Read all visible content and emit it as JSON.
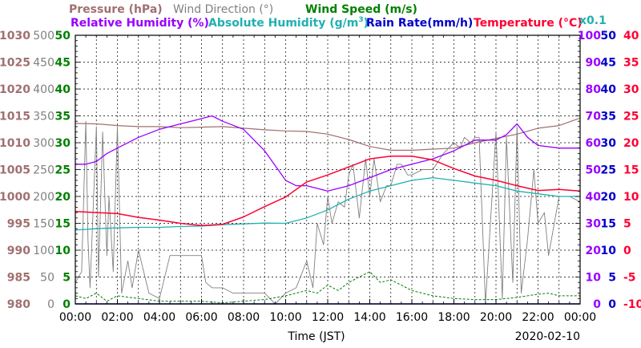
{
  "chart_data": {
    "type": "line",
    "date_label": "2020-02-10",
    "xlabel": "Time (JST)",
    "x_ticks": [
      "00:00",
      "02:00",
      "04:00",
      "06:00",
      "08:00",
      "10:00",
      "12:00",
      "14:00",
      "16:00",
      "18:00",
      "20:00",
      "22:00",
      "00:00"
    ],
    "x_range_hours": [
      0,
      24
    ],
    "grid": true,
    "colors": {
      "pressure": "#a07070",
      "wind_direction": "#808080",
      "wind_speed": "#008000",
      "relative_humidity": "#9900ff",
      "absolute_humidity": "#20b0b0",
      "rain_rate": "#0000cc",
      "temperature": "#ff0033"
    },
    "legend": {
      "pressure": "Pressure (hPa)",
      "wind_direction": "Wind Direction (°)",
      "wind_speed": "Wind Speed (m/s)",
      "relative_humidity": "Relative Humidity (%)",
      "absolute_humidity_main": "Absolute Humidity (g/m",
      "absolute_humidity_sup": "3",
      "absolute_humidity_end": ")",
      "rain_rate": "Rain Rate(mm/h)",
      "temperature": "Temperature (°C)",
      "abs_scale_note": "x0.1"
    },
    "axes": {
      "pressure": {
        "range": [
          980,
          1030
        ],
        "ticks": [
          "1030",
          "1025",
          "1020",
          "1015",
          "1010",
          "1005",
          "1000",
          "995",
          "990",
          "985",
          "980"
        ]
      },
      "wind_direction": {
        "range": [
          0,
          500
        ],
        "ticks": [
          "500",
          "450",
          "400",
          "350",
          "300",
          "250",
          "200",
          "150",
          "100",
          "50",
          "0"
        ]
      },
      "wind_speed": {
        "range": [
          0,
          50
        ],
        "ticks": [
          "50",
          "45",
          "40",
          "35",
          "30",
          "25",
          "20",
          "15",
          "10",
          "5",
          "0"
        ]
      },
      "humidity": {
        "range": [
          0,
          100
        ],
        "ticks": [
          "100",
          "90",
          "80",
          "70",
          "60",
          "50",
          "40",
          "30",
          "20",
          "10",
          "0"
        ]
      },
      "rain_rate": {
        "range": [
          0,
          50
        ],
        "ticks": [
          "50",
          "45",
          "40",
          "35",
          "30",
          "25",
          "20",
          "15",
          "10",
          "5",
          "0"
        ]
      },
      "temperature": {
        "range": [
          -10,
          40
        ],
        "ticks": [
          "40",
          "35",
          "30",
          "25",
          "20",
          "15",
          "10",
          "5",
          "0",
          "-5",
          "-10"
        ]
      }
    },
    "series": [
      {
        "name": "Pressure (hPa)",
        "key": "pressure",
        "x": [
          0,
          1,
          2,
          3,
          4,
          5,
          6,
          7,
          8,
          9,
          10,
          11,
          12,
          13,
          14,
          15,
          16,
          17,
          18,
          19,
          20,
          21,
          22,
          23,
          24
        ],
        "y": [
          1013.6,
          1013.5,
          1013.2,
          1013.0,
          1013.0,
          1012.8,
          1012.9,
          1013.0,
          1012.7,
          1012.4,
          1012.2,
          1012.1,
          1011.6,
          1010.6,
          1009.3,
          1008.6,
          1008.6,
          1008.8,
          1009.0,
          1010.0,
          1010.8,
          1011.6,
          1012.7,
          1013.2,
          1014.6
        ]
      },
      {
        "name": "Relative Humidity (%)",
        "key": "relative_humidity",
        "x": [
          0,
          0.5,
          1,
          1.5,
          2,
          3,
          4,
          5,
          5.5,
          6,
          6.5,
          7,
          8,
          8.5,
          9,
          10,
          10.5,
          11,
          12,
          13,
          14,
          15,
          16,
          17,
          18,
          19,
          19.5,
          20,
          20.5,
          21,
          21.5,
          22,
          23,
          24
        ],
        "y": [
          52,
          52,
          53,
          56,
          58,
          62,
          65,
          67,
          68,
          69,
          70,
          68,
          65,
          61,
          57,
          46,
          44,
          44,
          42,
          44,
          47,
          50,
          52,
          54,
          57,
          61,
          61,
          61,
          63,
          67,
          62,
          59,
          58,
          58
        ]
      },
      {
        "name": "Absolute Humidity (g/m3) x0.1",
        "key": "absolute_humidity",
        "x": [
          0,
          1,
          2,
          3,
          4,
          5,
          6,
          7,
          8,
          9,
          10,
          11,
          12,
          13,
          14,
          15,
          16,
          17,
          18,
          19,
          20,
          21,
          22,
          23,
          24
        ],
        "y": [
          27.5,
          28,
          28.3,
          28.5,
          28.5,
          28.8,
          29,
          29.5,
          29.8,
          30.1,
          30,
          32,
          35,
          39,
          42,
          44,
          46,
          47,
          46,
          45,
          44,
          42,
          41,
          40,
          40
        ]
      },
      {
        "name": "Temperature (°C)",
        "key": "temperature",
        "x": [
          0,
          1,
          2,
          3,
          4,
          5,
          6,
          7,
          8,
          9,
          10,
          11,
          12,
          13,
          14,
          15,
          16,
          17,
          18,
          19,
          20,
          21,
          22,
          23,
          24
        ],
        "y": [
          7.2,
          7.0,
          6.8,
          6.1,
          5.6,
          5.0,
          4.6,
          4.8,
          6.2,
          8.1,
          9.9,
          12.7,
          14.0,
          15.5,
          17.0,
          17.5,
          17.5,
          16.8,
          15.2,
          13.8,
          13.0,
          12.0,
          11.1,
          11.3,
          11.0
        ]
      },
      {
        "name": "Wind Direction (°)",
        "key": "wind_direction",
        "x": [
          0,
          0.3,
          0.5,
          0.6,
          0.7,
          1.0,
          1.1,
          1.3,
          1.5,
          1.6,
          1.8,
          2.0,
          2.2,
          2.5,
          2.7,
          3.0,
          3.5,
          4.0,
          4.5,
          5.0,
          5.5,
          6.0,
          6.2,
          6.5,
          7.0,
          7.5,
          8.0,
          8.5,
          9.0,
          9.5,
          10.0,
          10.5,
          11.0,
          11.3,
          11.5,
          11.8,
          12.0,
          12.2,
          12.5,
          12.8,
          13.0,
          13.2,
          13.5,
          13.8,
          14.0,
          14.2,
          14.5,
          14.8,
          15.0,
          15.3,
          15.5,
          15.8,
          16.0,
          16.5,
          17.0,
          17.5,
          18.0,
          18.3,
          18.5,
          18.8,
          19.0,
          19.2,
          19.5,
          20.0,
          20.3,
          20.5,
          20.8,
          21.0,
          21.2,
          21.5,
          21.8,
          22.0,
          22.3,
          22.5,
          23.0,
          23.5,
          24.0
        ],
        "y": [
          40,
          60,
          340,
          120,
          30,
          330,
          50,
          320,
          90,
          200,
          60,
          330,
          20,
          80,
          30,
          100,
          20,
          10,
          90,
          90,
          90,
          90,
          40,
          30,
          30,
          20,
          20,
          20,
          20,
          0,
          20,
          30,
          80,
          30,
          150,
          110,
          200,
          150,
          190,
          180,
          240,
          260,
          160,
          270,
          200,
          270,
          190,
          220,
          220,
          260,
          260,
          240,
          240,
          250,
          250,
          280,
          300,
          290,
          310,
          300,
          310,
          310,
          0,
          320,
          10,
          310,
          40,
          330,
          20,
          120,
          250,
          150,
          170,
          90,
          200,
          200,
          190
        ]
      },
      {
        "name": "Wind Speed (m/s)",
        "key": "wind_speed",
        "x": [
          0,
          0.5,
          1,
          1.5,
          2,
          3,
          4,
          5,
          6,
          7,
          8,
          9,
          10,
          11,
          11.5,
          12,
          12.5,
          13,
          13.5,
          14,
          14.5,
          15,
          15.5,
          16,
          17,
          18,
          19,
          20,
          21,
          21.5,
          22,
          22.5,
          23,
          24
        ],
        "y": [
          1.5,
          1.0,
          2.0,
          0.5,
          1.5,
          1.0,
          0.5,
          0.5,
          0.5,
          0.2,
          0.5,
          0.8,
          1.5,
          2.5,
          2.0,
          3.5,
          2.5,
          4.0,
          5.0,
          6.0,
          4.0,
          4.5,
          3.5,
          2.5,
          1.5,
          1.0,
          0.8,
          0.8,
          1.2,
          1.5,
          1.8,
          2.0,
          1.5,
          1.5
        ]
      },
      {
        "name": "Rain Rate(mm/h)",
        "key": "rain_rate",
        "x": [
          0,
          24
        ],
        "y": [
          0,
          0
        ]
      }
    ]
  }
}
